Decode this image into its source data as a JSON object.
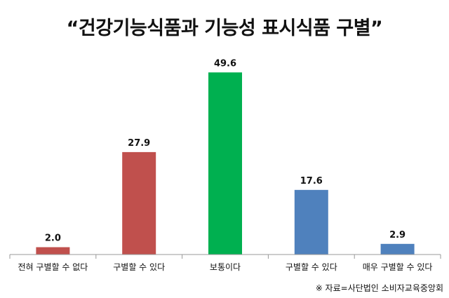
{
  "chart_data": {
    "type": "bar",
    "title": "“건강기능식품과 기능성 표시식품 구별”",
    "categories": [
      "전혀 구별할 수 없다",
      "구별할 수 있다",
      "보통이다",
      "구별할 수 있다",
      "매우 구별할 수 있다"
    ],
    "values": [
      2.0,
      27.9,
      49.6,
      17.6,
      2.9
    ],
    "value_labels": [
      "2.0",
      "27.9",
      "49.6",
      "17.6",
      "2.9"
    ],
    "colors": [
      "#c0504d",
      "#c0504d",
      "#00b050",
      "#4f81bd",
      "#4f81bd"
    ],
    "ylim": [
      0,
      55
    ],
    "grid": false,
    "legend": "none",
    "xlabel": "",
    "ylabel": ""
  },
  "source_note": "※ 자료=사단법인 소비자교육중앙회"
}
